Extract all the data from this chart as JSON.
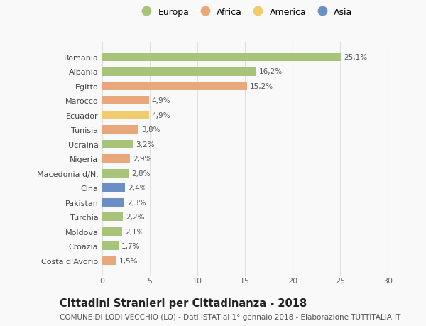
{
  "categories": [
    "Romania",
    "Albania",
    "Egitto",
    "Marocco",
    "Ecuador",
    "Tunisia",
    "Ucraina",
    "Nigeria",
    "Macedonia d/N.",
    "Cina",
    "Pakistan",
    "Turchia",
    "Moldova",
    "Croazia",
    "Costa d'Avorio"
  ],
  "values": [
    25.1,
    16.2,
    15.2,
    4.9,
    4.9,
    3.8,
    3.2,
    2.9,
    2.8,
    2.4,
    2.3,
    2.2,
    2.1,
    1.7,
    1.5
  ],
  "labels": [
    "25,1%",
    "16,2%",
    "15,2%",
    "4,9%",
    "4,9%",
    "3,8%",
    "3,2%",
    "2,9%",
    "2,8%",
    "2,4%",
    "2,3%",
    "2,2%",
    "2,1%",
    "1,7%",
    "1,5%"
  ],
  "continents": [
    "Europa",
    "Europa",
    "Africa",
    "Africa",
    "America",
    "Africa",
    "Europa",
    "Africa",
    "Europa",
    "Asia",
    "Asia",
    "Europa",
    "Europa",
    "Europa",
    "Africa"
  ],
  "continent_colors": {
    "Europa": "#a8c47a",
    "Africa": "#e8a87c",
    "America": "#f0cc6e",
    "Asia": "#6b8ec4"
  },
  "legend_order": [
    "Europa",
    "Africa",
    "America",
    "Asia"
  ],
  "title": "Cittadini Stranieri per Cittadinanza - 2018",
  "subtitle": "COMUNE DI LODI VECCHIO (LO) - Dati ISTAT al 1° gennaio 2018 - Elaborazione TUTTITALIA.IT",
  "xlim": [
    0,
    30
  ],
  "xticks": [
    0,
    5,
    10,
    15,
    20,
    25,
    30
  ],
  "background_color": "#f9f9f9",
  "grid_color": "#e0e0e0",
  "bar_height": 0.6,
  "title_fontsize": 10.5,
  "subtitle_fontsize": 7.5,
  "label_fontsize": 7.5,
  "tick_fontsize": 8,
  "legend_fontsize": 9
}
